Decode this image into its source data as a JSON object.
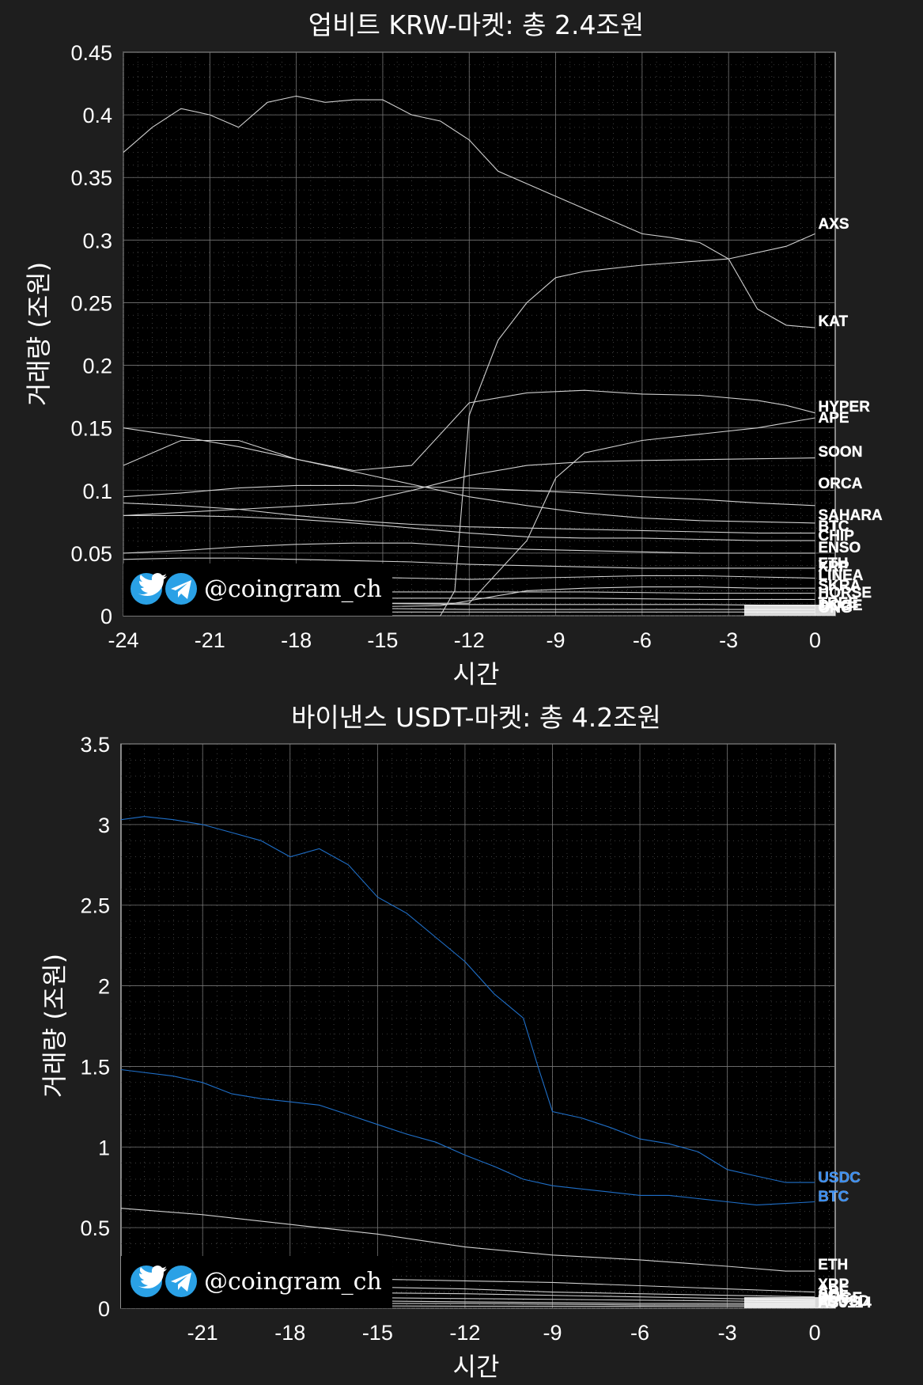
{
  "watermark": {
    "handle": "@coingram_ch",
    "icons": [
      "twitter-icon",
      "telegram-icon"
    ]
  },
  "chart_data": [
    {
      "type": "line",
      "title": "업비트 KRW-마켓: 총 2.4조원",
      "xlabel": "시간",
      "ylabel": "거래량 (조원)",
      "xlim": [
        -24,
        0.7
      ],
      "ylim": [
        0,
        0.45
      ],
      "xticks": [
        -24,
        -21,
        -18,
        -15,
        -12,
        -9,
        -6,
        -3,
        0
      ],
      "yticks": [
        0,
        0.05,
        0.1,
        0.15,
        0.2,
        0.25,
        0.3,
        0.35,
        0.4,
        0.45
      ],
      "xtick_labels": [
        "-24",
        "-21",
        "-18",
        "-15",
        "-12",
        "-9",
        "-6",
        "-3",
        "0"
      ],
      "ytick_labels": [
        "0",
        "0.05",
        "0.1",
        "0.15",
        "0.2",
        "0.25",
        "0.3",
        "0.35",
        "0.4",
        "0.45"
      ],
      "grid": true,
      "series": [
        {
          "name": "AXS",
          "color": "#d0d0d0",
          "x": [
            -24,
            -22,
            -20,
            -18,
            -16,
            -14,
            -13,
            -12.5,
            -12,
            -11,
            -10,
            -9,
            -8,
            -6,
            -3,
            -1,
            0
          ],
          "y": [
            0,
            0,
            0,
            0,
            0,
            0,
            0,
            0.02,
            0.16,
            0.22,
            0.25,
            0.27,
            0.275,
            0.28,
            0.285,
            0.295,
            0.305
          ]
        },
        {
          "name": "KAT",
          "color": "#d0d0d0",
          "x": [
            -24,
            -23.5,
            -23,
            -22,
            -21,
            -20,
            -19,
            -18,
            -17,
            -16,
            -15,
            -14,
            -13,
            -12,
            -11,
            -10,
            -9,
            -8,
            -7,
            -6,
            -5,
            -4,
            -3,
            -2,
            -1,
            0
          ],
          "y": [
            0.37,
            0.38,
            0.39,
            0.405,
            0.4,
            0.39,
            0.41,
            0.415,
            0.41,
            0.412,
            0.412,
            0.4,
            0.395,
            0.38,
            0.355,
            0.345,
            0.335,
            0.325,
            0.315,
            0.305,
            0.302,
            0.298,
            0.285,
            0.245,
            0.232,
            0.23
          ]
        },
        {
          "name": "HYPER",
          "color": "#d0d0d0",
          "x": [
            -24,
            -22,
            -20,
            -18,
            -16,
            -14,
            -12,
            -10,
            -8,
            -6,
            -4,
            -2,
            -1,
            0
          ],
          "y": [
            0.15,
            0.143,
            0.135,
            0.125,
            0.116,
            0.12,
            0.17,
            0.178,
            0.18,
            0.177,
            0.176,
            0.172,
            0.168,
            0.162
          ]
        },
        {
          "name": "APE",
          "color": "#d0d0d0",
          "x": [
            -24,
            -22,
            -20,
            -18,
            -16,
            -14,
            -12,
            -10,
            -9,
            -8,
            -6,
            -4,
            -2,
            0
          ],
          "y": [
            0.01,
            0.01,
            0.01,
            0.01,
            0.01,
            0.01,
            0.01,
            0.06,
            0.11,
            0.13,
            0.14,
            0.145,
            0.15,
            0.158
          ]
        },
        {
          "name": "SOON",
          "color": "#d0d0d0",
          "x": [
            -24,
            -20,
            -16,
            -14,
            -12,
            -10,
            -8,
            -6,
            -3,
            0
          ],
          "y": [
            0.08,
            0.085,
            0.09,
            0.1,
            0.112,
            0.12,
            0.123,
            0.124,
            0.125,
            0.126
          ]
        },
        {
          "name": "ORCA",
          "color": "#d0d0d0",
          "x": [
            -24,
            -22,
            -20,
            -18,
            -16,
            -14,
            -12,
            -10,
            -8,
            -6,
            -4,
            -2,
            0
          ],
          "y": [
            0.095,
            0.098,
            0.102,
            0.104,
            0.104,
            0.103,
            0.102,
            0.1,
            0.098,
            0.095,
            0.093,
            0.09,
            0.088
          ]
        },
        {
          "name": "SAHARA",
          "color": "#d0d0d0",
          "x": [
            -24,
            -22,
            -20,
            -18,
            -16,
            -14,
            -12,
            -10,
            -8,
            -6,
            -4,
            -2,
            0
          ],
          "y": [
            0.12,
            0.14,
            0.14,
            0.125,
            0.115,
            0.105,
            0.095,
            0.088,
            0.082,
            0.078,
            0.076,
            0.075,
            0.074
          ]
        },
        {
          "name": "BTC",
          "color": "#d0d0d0",
          "x": [
            -24,
            -22,
            -20,
            -18,
            -16,
            -14,
            -12,
            -10,
            -8,
            -6,
            -4,
            -2,
            0
          ],
          "y": [
            0.09,
            0.088,
            0.085,
            0.08,
            0.076,
            0.073,
            0.071,
            0.07,
            0.069,
            0.068,
            0.067,
            0.066,
            0.066
          ]
        },
        {
          "name": "CHIP",
          "color": "#d0d0d0",
          "x": [
            -24,
            -22,
            -20,
            -18,
            -16,
            -14,
            -12,
            -10,
            -8,
            -6,
            -4,
            -2,
            0
          ],
          "y": [
            0.08,
            0.08,
            0.079,
            0.077,
            0.074,
            0.07,
            0.066,
            0.063,
            0.062,
            0.062,
            0.061,
            0.06,
            0.06
          ]
        },
        {
          "name": "ENSO",
          "color": "#d0d0d0",
          "x": [
            -24,
            -22,
            -20,
            -18,
            -16,
            -14,
            -12,
            -10,
            -8,
            -6,
            -4,
            -2,
            0
          ],
          "y": [
            0.05,
            0.052,
            0.055,
            0.057,
            0.058,
            0.058,
            0.055,
            0.053,
            0.052,
            0.051,
            0.05,
            0.05,
            0.05
          ]
        },
        {
          "name": "ETH",
          "color": "#d0d0d0",
          "x": [
            -24,
            -22,
            -20,
            -18,
            -16,
            -14,
            -12,
            -10,
            -8,
            -6,
            -4,
            -2,
            0
          ],
          "y": [
            0.045,
            0.046,
            0.046,
            0.045,
            0.044,
            0.043,
            0.041,
            0.04,
            0.039,
            0.038,
            0.038,
            0.038,
            0.038
          ]
        },
        {
          "name": "LINEA",
          "color": "#d0d0d0",
          "x": [
            -24,
            -20,
            -16,
            -14,
            -12,
            -10,
            -8,
            -6,
            -4,
            -2,
            0
          ],
          "y": [
            0.03,
            0.031,
            0.031,
            0.03,
            0.029,
            0.03,
            0.031,
            0.032,
            0.032,
            0.031,
            0.03
          ]
        },
        {
          "name": "SKRA",
          "color": "#d0d0d0",
          "x": [
            -24,
            -20,
            -16,
            -13,
            -12,
            -10,
            -8,
            -6,
            -4,
            -2,
            0
          ],
          "y": [
            0.005,
            0.006,
            0.007,
            0.008,
            0.012,
            0.02,
            0.022,
            0.023,
            0.023,
            0.022,
            0.022
          ]
        },
        {
          "name": "XRP",
          "color": "#d0d0d0",
          "x": [
            -24,
            -20,
            -16,
            -12,
            -8,
            -4,
            0
          ],
          "y": [
            0.02,
            0.02,
            0.019,
            0.019,
            0.019,
            0.018,
            0.018
          ]
        },
        {
          "name": "",
          "color": "#d0d0d0",
          "x": [
            -24,
            -20,
            -16,
            -12,
            -8,
            -4,
            0
          ],
          "y": [
            0.015,
            0.015,
            0.014,
            0.014,
            0.014,
            0.013,
            0.013
          ]
        },
        {
          "name": "TREE",
          "color": "#d0d0d0",
          "x": [
            -24,
            -20,
            -16,
            -12,
            -8,
            -4,
            0
          ],
          "y": [
            0.01,
            0.01,
            0.01,
            0.009,
            0.009,
            0.009,
            0.008
          ]
        },
        {
          "name": "",
          "color": "#d0d0d0",
          "x": [
            -24,
            -20,
            -16,
            -12,
            -8,
            -4,
            0
          ],
          "y": [
            0.006,
            0.006,
            0.006,
            0.005,
            0.005,
            0.005,
            0.005
          ]
        },
        {
          "name": "",
          "color": "#d0d0d0",
          "x": [
            -24,
            -20,
            -16,
            -12,
            -8,
            -4,
            0
          ],
          "y": [
            0.003,
            0.003,
            0.003,
            0.003,
            0.003,
            0.003,
            0.003
          ]
        }
      ],
      "end_labels": [
        "AXS",
        "KAT",
        "HYPER",
        "APE",
        "SOON",
        "ORCA",
        "SAHARA",
        "BTC",
        "CHIP",
        "ENSO",
        "ETH",
        "XRP",
        "LINEA",
        "SKRA",
        "HORSE",
        "TREE",
        "DOGE",
        "ONG"
      ]
    },
    {
      "type": "line",
      "title": "바이낸스 USDT-마켓: 총 4.2조원",
      "xlabel": "시간",
      "ylabel": "거래량 (조원)",
      "xlim": [
        -23.8,
        0.7
      ],
      "ylim": [
        0,
        3.5
      ],
      "xticks": [
        -21,
        -18,
        -15,
        -12,
        -9,
        -6,
        -3,
        0
      ],
      "yticks": [
        0,
        0.5,
        1,
        1.5,
        2,
        2.5,
        3,
        3.5
      ],
      "xtick_labels": [
        "-21",
        "-18",
        "-15",
        "-12",
        "-9",
        "-6",
        "-3",
        "0"
      ],
      "ytick_labels": [
        "0",
        "0.5",
        "1",
        "1.5",
        "2",
        "2.5",
        "3",
        "3.5"
      ],
      "grid": true,
      "series": [
        {
          "name": "USDC",
          "color": "#1f6fc8",
          "x": [
            -23.8,
            -23,
            -22,
            -21,
            -20,
            -19,
            -18,
            -17,
            -16,
            -15,
            -14,
            -13,
            -12,
            -11,
            -10,
            -9.5,
            -9,
            -8,
            -7,
            -6,
            -5,
            -4,
            -3,
            -2,
            -1,
            0
          ],
          "y": [
            3.03,
            3.05,
            3.03,
            3.0,
            2.95,
            2.9,
            2.8,
            2.85,
            2.75,
            2.55,
            2.45,
            2.3,
            2.15,
            1.95,
            1.8,
            1.5,
            1.22,
            1.18,
            1.12,
            1.05,
            1.02,
            0.97,
            0.86,
            0.82,
            0.78,
            0.78
          ]
        },
        {
          "name": "BTC",
          "color": "#1f6fc8",
          "x": [
            -23.8,
            -22,
            -21,
            -20,
            -19,
            -18,
            -17,
            -16,
            -15,
            -14,
            -13,
            -12,
            -11,
            -10,
            -9,
            -8,
            -7,
            -6,
            -5,
            -4,
            -3,
            -2,
            -1,
            0
          ],
          "y": [
            1.48,
            1.44,
            1.4,
            1.33,
            1.3,
            1.28,
            1.26,
            1.2,
            1.14,
            1.08,
            1.03,
            0.95,
            0.88,
            0.8,
            0.76,
            0.74,
            0.72,
            0.7,
            0.7,
            0.68,
            0.66,
            0.64,
            0.65,
            0.66
          ]
        },
        {
          "name": "ETH",
          "color": "#d0d0d0",
          "x": [
            -23.8,
            -21,
            -18,
            -15,
            -12,
            -9,
            -6,
            -3,
            -1,
            0
          ],
          "y": [
            0.62,
            0.58,
            0.52,
            0.46,
            0.38,
            0.33,
            0.3,
            0.26,
            0.23,
            0.23
          ]
        },
        {
          "name": "XRP",
          "color": "#d0d0d0",
          "x": [
            -23.8,
            -21,
            -18,
            -15,
            -12,
            -9,
            -6,
            -3,
            0
          ],
          "y": [
            0.2,
            0.2,
            0.19,
            0.18,
            0.17,
            0.16,
            0.14,
            0.12,
            0.1
          ]
        },
        {
          "name": "APE",
          "color": "#d0d0d0",
          "x": [
            -23.8,
            -21,
            -18,
            -15,
            -12,
            -9,
            -6,
            -3,
            0
          ],
          "y": [
            0.14,
            0.14,
            0.13,
            0.13,
            0.12,
            0.1,
            0.09,
            0.08,
            0.07
          ]
        },
        {
          "name": "",
          "color": "#d0d0d0",
          "x": [
            -23.8,
            -18,
            -12,
            -6,
            0
          ],
          "y": [
            0.1,
            0.1,
            0.09,
            0.07,
            0.05
          ]
        },
        {
          "name": "",
          "color": "#d0d0d0",
          "x": [
            -23.8,
            -18,
            -12,
            -6,
            0
          ],
          "y": [
            0.07,
            0.07,
            0.06,
            0.05,
            0.04
          ]
        },
        {
          "name": "",
          "color": "#d0d0d0",
          "x": [
            -23.8,
            -18,
            -12,
            -6,
            0
          ],
          "y": [
            0.05,
            0.05,
            0.04,
            0.03,
            0.03
          ]
        },
        {
          "name": "",
          "color": "#d0d0d0",
          "x": [
            -23.8,
            -18,
            -12,
            -6,
            0
          ],
          "y": [
            0.03,
            0.03,
            0.03,
            0.02,
            0.02
          ]
        },
        {
          "name": "",
          "color": "#d0d0d0",
          "x": [
            -23.8,
            -18,
            -12,
            -6,
            0
          ],
          "y": [
            0.015,
            0.015,
            0.013,
            0.012,
            0.01
          ]
        }
      ],
      "end_labels": [
        "USDC",
        "BTC",
        "ETH",
        "XRP",
        "APE",
        "SOL",
        "DOGE",
        "FDUSD",
        "AS3114"
      ]
    }
  ]
}
